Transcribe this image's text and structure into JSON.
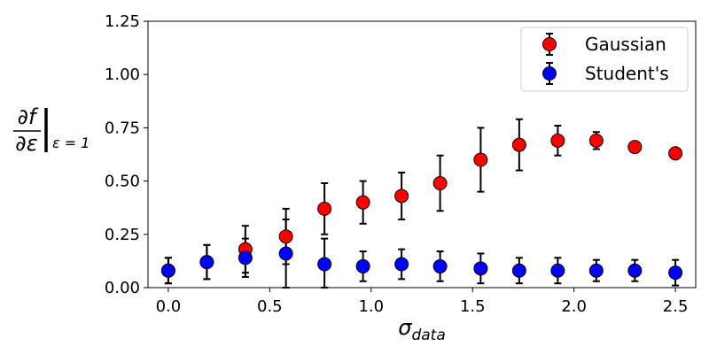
{
  "chart_data": {
    "type": "scatter",
    "xlabel": "σ",
    "xlabel_sub": "data",
    "ylabel_num": "∂f",
    "ylabel_den": "∂ε",
    "ylabel_eval": "ε = 1",
    "xlim": [
      -0.1,
      2.6
    ],
    "ylim": [
      0,
      1.25
    ],
    "xticks": [
      0.0,
      0.5,
      1.0,
      1.5,
      2.0,
      2.5
    ],
    "xtick_labels": [
      "0.0",
      "0.5",
      "1.0",
      "1.5",
      "2.0",
      "2.5"
    ],
    "yticks": [
      0.0,
      0.25,
      0.5,
      0.75,
      1.0,
      1.25
    ],
    "ytick_labels": [
      "0.00",
      "0.25",
      "0.50",
      "0.75",
      "1.00",
      "1.25"
    ],
    "grid": false,
    "legend_position": "top-right",
    "x": [
      0.0,
      0.19,
      0.38,
      0.58,
      0.77,
      0.96,
      1.15,
      1.34,
      1.54,
      1.73,
      1.92,
      2.11,
      2.3,
      2.5
    ],
    "series": [
      {
        "name": "Gaussian",
        "color": "#ff0000",
        "values": [
          0.08,
          0.12,
          0.18,
          0.24,
          0.37,
          0.4,
          0.43,
          0.49,
          0.6,
          0.67,
          0.69,
          0.69,
          0.66,
          0.63
        ],
        "errors": [
          0.06,
          0.08,
          0.11,
          0.13,
          0.12,
          0.1,
          0.11,
          0.13,
          0.15,
          0.12,
          0.07,
          0.04,
          0.02,
          0.02
        ]
      },
      {
        "name": "Student's",
        "color": "#0000ff",
        "values": [
          0.08,
          0.12,
          0.14,
          0.16,
          0.11,
          0.1,
          0.11,
          0.1,
          0.09,
          0.08,
          0.08,
          0.08,
          0.08,
          0.07
        ],
        "errors": [
          0.06,
          0.08,
          0.09,
          0.16,
          0.12,
          0.07,
          0.07,
          0.07,
          0.07,
          0.06,
          0.06,
          0.05,
          0.05,
          0.06
        ]
      }
    ]
  }
}
